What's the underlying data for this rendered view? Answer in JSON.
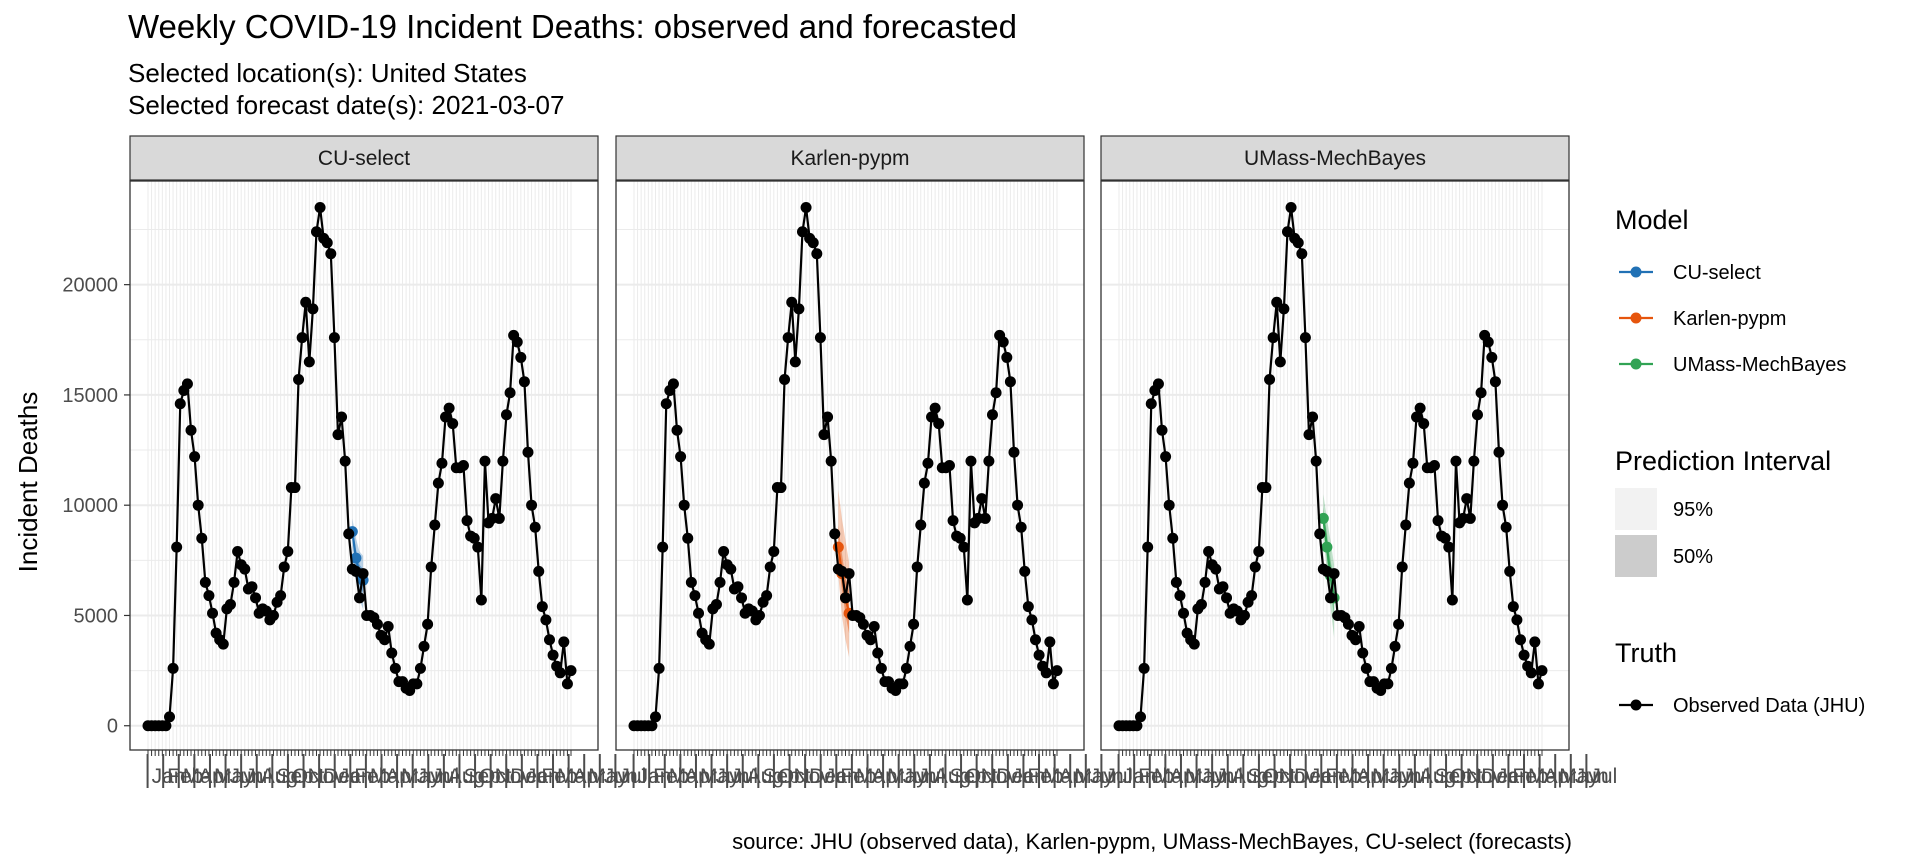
{
  "chart_data": {
    "type": "line",
    "title": "Weekly COVID-19 Incident Deaths: observed and forecasted",
    "subtitle_lines": [
      "Selected location(s): United States",
      "Selected forecast date(s): 2021-03-07"
    ],
    "ylabel": "Incident Deaths",
    "caption": "source: JHU (observed data), Karlen-pypm, UMass-MechBayes, CU-select (forecasts)",
    "ylim": [
      -1100,
      24700
    ],
    "yticks": [
      0,
      5000,
      10000,
      15000,
      20000
    ],
    "grid": true,
    "legend_position": "right",
    "x_tick_labels": [
      "Jan",
      "Feb",
      "Mar",
      "Apr",
      "May",
      "Jun",
      "Jul",
      "Aug",
      "Sep",
      "Oct",
      "Nov",
      "Dec",
      "Jan",
      "Feb",
      "Mar",
      "Apr",
      "May",
      "Jun",
      "Jul",
      "Aug",
      "Sep",
      "Oct",
      "Nov",
      "Dec",
      "Jan",
      "Feb",
      "Mar",
      "Apr",
      "May",
      "Jun",
      "Jul"
    ],
    "x_tick_first_index": 1,
    "x_tick_spacing_weeks": 4.35,
    "truth": {
      "name": "Observed Data (JHU)",
      "color": "#000000",
      "values": [
        0,
        0,
        0,
        0,
        0,
        0,
        400,
        2600,
        8100,
        14600,
        15200,
        15500,
        13400,
        12200,
        10000,
        8500,
        6500,
        5900,
        5100,
        4200,
        3900,
        3700,
        5300,
        5500,
        6500,
        7900,
        7300,
        7100,
        6200,
        6300,
        5800,
        5100,
        5300,
        5200,
        4800,
        5000,
        5600,
        5900,
        7200,
        7900,
        10800,
        10800,
        15700,
        17600,
        19200,
        16500,
        18900,
        22400,
        23500,
        22100,
        21900,
        21400,
        17600,
        13200,
        14000,
        12000,
        8700,
        7100,
        7000,
        5800,
        6900,
        5000,
        5000,
        4900,
        4600,
        4100,
        3900,
        4500,
        3300,
        2600,
        2000,
        2000,
        1700,
        1600,
        1900,
        1900,
        2600,
        3600,
        4600,
        7200,
        9100,
        11000,
        11900,
        14000,
        14400,
        13700,
        11700,
        11700,
        11800,
        9300,
        8600,
        8500,
        8100,
        5700,
        12000,
        9200,
        9400,
        10300,
        9400,
        12000,
        14100,
        15100,
        17700,
        17400,
        16700,
        15600,
        12400,
        10000,
        9000,
        7000,
        5400,
        4800,
        3900,
        3200,
        2700,
        2400,
        3800,
        1900,
        2500
      ]
    },
    "facets": [
      {
        "name": "CU-select",
        "color": "#2171b5",
        "forecast": {
          "start_index": 57,
          "median": [
            8800,
            7600,
            6900,
            6600
          ],
          "pi95": [
            [
              8100,
              9400
            ],
            [
              6600,
              8500
            ],
            [
              5700,
              7900
            ],
            [
              5300,
              7700
            ]
          ],
          "pi50": [
            [
              8500,
              9100
            ],
            [
              7200,
              8000
            ],
            [
              6400,
              7300
            ],
            [
              6000,
              7100
            ]
          ]
        }
      },
      {
        "name": "Karlen-pypm",
        "color": "#e6550d",
        "forecast": {
          "start_index": 57,
          "median": [
            8100,
            6900,
            5800,
            5100
          ],
          "pi95": [
            [
              6800,
              10700
            ],
            [
              5000,
              9400
            ],
            [
              3900,
              8400
            ],
            [
              3100,
              7400
            ]
          ],
          "pi50": [
            [
              7500,
              9100
            ],
            [
              6200,
              7800
            ],
            [
              5000,
              6700
            ],
            [
              4200,
              6100
            ]
          ]
        }
      },
      {
        "name": "UMass-MechBayes",
        "color": "#31a354",
        "forecast": {
          "start_index": 57,
          "median": [
            9400,
            8100,
            6800,
            5800
          ],
          "pi95": [
            [
              8600,
              10500
            ],
            [
              7000,
              9400
            ],
            [
              5400,
              8400
            ],
            [
              4000,
              7300
            ]
          ],
          "pi50": [
            [
              9000,
              9900
            ],
            [
              7600,
              8700
            ],
            [
              6100,
              7500
            ],
            [
              5000,
              6600
            ]
          ]
        }
      }
    ],
    "legend": {
      "model_title": "Model",
      "models": [
        "CU-select",
        "Karlen-pypm",
        "UMass-MechBayes"
      ],
      "model_colors": [
        "#2171b5",
        "#e6550d",
        "#31a354"
      ],
      "interval_title": "Prediction Interval",
      "intervals": [
        "95%",
        "50%"
      ],
      "truth_title": "Truth",
      "truth_entry": "Observed Data (JHU)"
    }
  }
}
